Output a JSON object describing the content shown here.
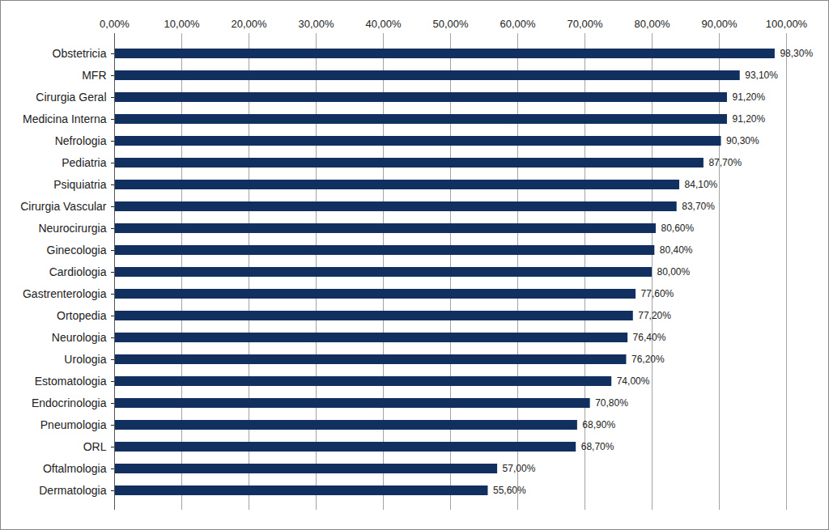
{
  "chart_data": {
    "type": "bar",
    "orientation": "horizontal",
    "categories": [
      "Obstetricia",
      "MFR",
      "Cirurgia Geral",
      "Medicina Interna",
      "Nefrologia",
      "Pediatria",
      "Psiquiatria",
      "Cirurgia Vascular",
      "Neurocirurgia",
      "Ginecologia",
      "Cardiologia",
      "Gastrenterologia",
      "Ortopedia",
      "Neurologia",
      "Urologia",
      "Estomatologia",
      "Endocrinologia",
      "Pneumologia",
      "ORL",
      "Oftalmologia",
      "Dermatologia"
    ],
    "values": [
      98.3,
      93.1,
      91.2,
      91.2,
      90.3,
      87.7,
      84.1,
      83.7,
      80.6,
      80.4,
      80.0,
      77.6,
      77.2,
      76.4,
      76.2,
      74.0,
      70.8,
      68.9,
      68.7,
      57.0,
      55.6
    ],
    "value_labels": [
      "98,30%",
      "93,10%",
      "91,20%",
      "91,20%",
      "90,30%",
      "87,70%",
      "84,10%",
      "83,70%",
      "80,60%",
      "80,40%",
      "80,00%",
      "77,60%",
      "77,20%",
      "76,40%",
      "76,20%",
      "74,00%",
      "70,80%",
      "68,90%",
      "68,70%",
      "57,00%",
      "55,60%"
    ],
    "color": "#12305f",
    "xlim": [
      0,
      100
    ],
    "xticks": [
      {
        "value": 0,
        "label": "0,00%"
      },
      {
        "value": 10,
        "label": "10,00%"
      },
      {
        "value": 20,
        "label": "20,00%"
      },
      {
        "value": 30,
        "label": "30,00%"
      },
      {
        "value": 40,
        "label": "40,00%"
      },
      {
        "value": 50,
        "label": "50,00%"
      },
      {
        "value": 60,
        "label": "60,00%"
      },
      {
        "value": 70,
        "label": "70,00%"
      },
      {
        "value": 80,
        "label": "80,00%"
      },
      {
        "value": 90,
        "label": "90,00%"
      },
      {
        "value": 100,
        "label": "100,00%"
      }
    ],
    "grid": true,
    "data_labels": true
  }
}
